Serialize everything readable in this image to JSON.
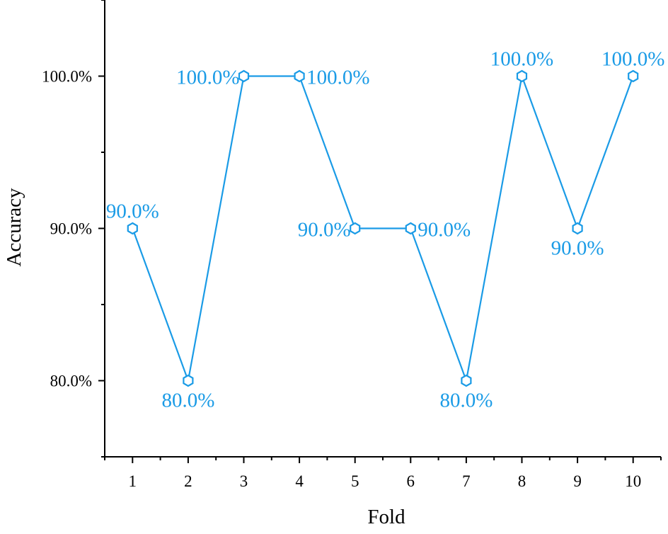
{
  "chart_data": {
    "type": "line",
    "title": "",
    "xlabel": "Fold",
    "ylabel": "Accuracy",
    "x": [
      1,
      2,
      3,
      4,
      5,
      6,
      7,
      8,
      9,
      10
    ],
    "series": [
      {
        "values": [
          90.0,
          80.0,
          100.0,
          100.0,
          90.0,
          90.0,
          80.0,
          100.0,
          90.0,
          100.0
        ],
        "labels": [
          "90.0%",
          "80.0%",
          "100.0%",
          "100.0%",
          "90.0%",
          "90.0%",
          "80.0%",
          "100.0%",
          "90.0%",
          "100.0%"
        ],
        "marker": "hexagon-open",
        "color": "#1a9be6"
      }
    ],
    "xlim": [
      0.5,
      10.5
    ],
    "ylim": [
      75,
      105
    ],
    "x_ticks": [
      "1",
      "2",
      "3",
      "4",
      "5",
      "6",
      "7",
      "8",
      "9",
      "10"
    ],
    "y_ticks": [
      {
        "value": 80,
        "label": "80.0%"
      },
      {
        "value": 90,
        "label": "90.0%"
      },
      {
        "value": 100,
        "label": "100.0%"
      }
    ],
    "label_placement": [
      "above",
      "below",
      "left",
      "right",
      "left",
      "right",
      "below",
      "above",
      "below",
      "above"
    ],
    "grid": false,
    "legend": "none",
    "colors": {
      "line": "#1a9be6",
      "axis": "#000000",
      "background": "#ffffff"
    }
  }
}
